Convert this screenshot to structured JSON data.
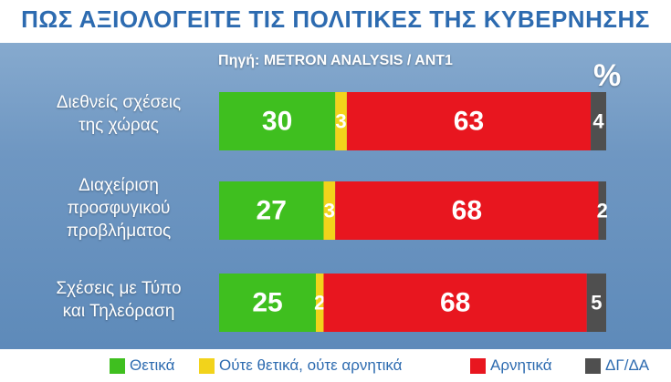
{
  "title": "ΠΩΣ ΑΞΙΟΛΟΓΕΙΤΕ ΤΙΣ ΠΟΛΙΤΙΚΕΣ ΤΗΣ ΚΥΒΕΡΝΗΣΗΣ",
  "subtitle": "Πηγή: METRON ANALYSIS / ANT1",
  "unit": "%",
  "chart_data": {
    "type": "bar",
    "stacked": true,
    "orientation": "horizontal",
    "categories": [
      [
        "Διεθνείς σχέσεις",
        "της χώρας"
      ],
      [
        "Διαχείριση",
        "προσφυγικού",
        "προβλήματος"
      ],
      [
        "Σχέσεις με Τύπο",
        "και Τηλεόραση"
      ]
    ],
    "series": [
      {
        "name": "Θετικά",
        "color": "#3fbf1f",
        "values": [
          30,
          27,
          25
        ]
      },
      {
        "name": "Ούτε θετικά, ούτε αρνητικά",
        "color": "#f2d31b",
        "values": [
          3,
          3,
          2
        ]
      },
      {
        "name": "Αρνητικά",
        "color": "#e8161f",
        "values": [
          63,
          68,
          68
        ]
      },
      {
        "name": "ΔΓ/ΔΑ",
        "color": "#4f4f4f",
        "values": [
          4,
          2,
          5
        ]
      }
    ],
    "data_labels": true
  }
}
